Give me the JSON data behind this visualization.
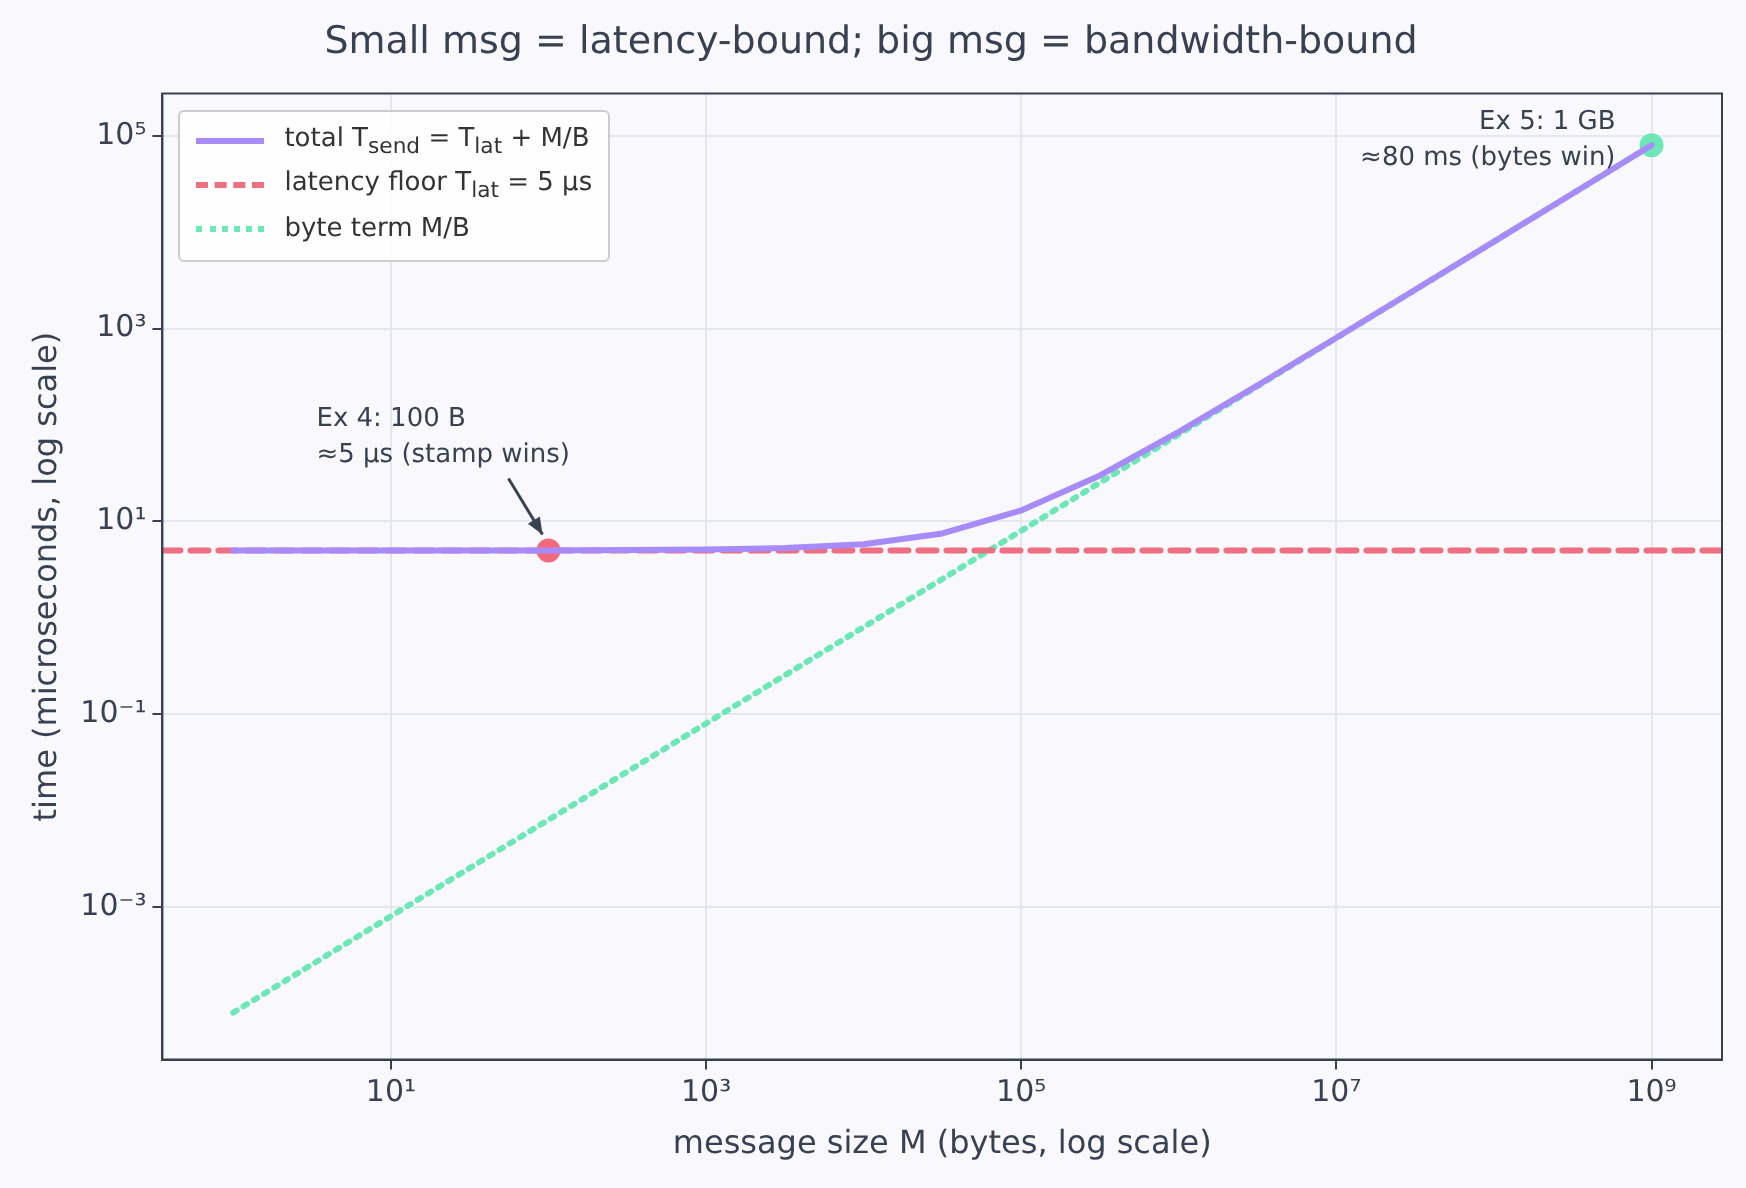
{
  "chart_data": {
    "type": "line",
    "title": "Small msg = latency-bound; big msg = bandwidth-bound",
    "xlabel": "message size M (bytes, log scale)",
    "ylabel": "time (microseconds, log scale)",
    "log": "xy",
    "grid": true,
    "legend": "top left",
    "xlim": [
      0.355,
      2800000000
    ],
    "ylim": [
      2.6e-05,
      275000
    ],
    "xticks": [
      {
        "value": 10,
        "label": "10¹"
      },
      {
        "value": 1000,
        "label": "10³"
      },
      {
        "value": 100000,
        "label": "10⁵"
      },
      {
        "value": 10000000,
        "label": "10⁷"
      },
      {
        "value": 1000000000,
        "label": "10⁹"
      }
    ],
    "yticks": [
      {
        "value": 0.001,
        "label": "10⁻³"
      },
      {
        "value": 0.1,
        "label": "10⁻¹"
      },
      {
        "value": 10,
        "label": "10¹"
      },
      {
        "value": 1000,
        "label": "10³"
      },
      {
        "value": 100000,
        "label": "10⁵"
      }
    ],
    "series": [
      {
        "name": "total T$_{send}$ = T$_{lat}$ + M/B",
        "type": "line",
        "color": "#a78bfa",
        "line_style": "solid",
        "marker": "none",
        "x": [
          1,
          10,
          100,
          1000,
          3162,
          10000,
          31623,
          100000,
          316228,
          1000000,
          3162278,
          10000000,
          31622777,
          100000000,
          316227766,
          1000000000
        ],
        "values": [
          5,
          5,
          5,
          5.1,
          5.3,
          5.8,
          7.5,
          13,
          30,
          85,
          258,
          805,
          2535,
          8005,
          25300,
          80000
        ]
      },
      {
        "name": "latency floor T$_{lat}$ = 5 μs",
        "type": "line",
        "color": "#ee6f80",
        "line_style": "dashed",
        "marker": "none",
        "x": [
          0.355,
          2800000000
        ],
        "values": [
          5,
          5
        ]
      },
      {
        "name": "byte term M/B",
        "type": "line",
        "color": "#6ee7b7",
        "line_style": "dotted",
        "marker": "none",
        "x": [
          1,
          10,
          100,
          1000,
          10000,
          100000,
          1000000,
          10000000,
          100000000,
          1000000000
        ],
        "values": [
          8e-05,
          0.0008,
          0.008,
          0.08,
          0.8,
          8,
          80,
          800,
          8000,
          80000
        ]
      },
      {
        "type": "scatter",
        "marker": "circle",
        "colors": [
          "#f2687c",
          "#6ee7b7"
        ],
        "x": [
          100,
          1000000000
        ],
        "values": [
          5,
          80000
        ]
      }
    ],
    "annotations": [
      {
        "text": "Ex 4: 100 B\n≈5 μs (stamp wins)",
        "x": 100,
        "y": 5
      },
      {
        "text": "Ex 5: 1 GB\n≈80 ms (bytes win)",
        "x": 1000000000,
        "y": 80000
      }
    ]
  }
}
